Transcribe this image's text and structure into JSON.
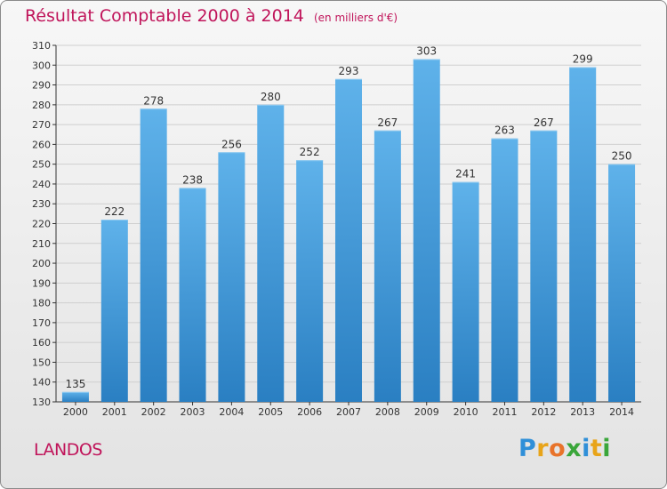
{
  "chart_data": {
    "type": "bar",
    "title": "Résultat Comptable 2000 à 2014",
    "subtitle": "(en milliers d'€)",
    "categories": [
      "2000",
      "2001",
      "2002",
      "2003",
      "2004",
      "2005",
      "2006",
      "2007",
      "2008",
      "2009",
      "2010",
      "2011",
      "2012",
      "2013",
      "2014"
    ],
    "values": [
      135,
      222,
      278,
      238,
      256,
      280,
      252,
      293,
      267,
      303,
      241,
      263,
      267,
      299,
      250
    ],
    "ylim": [
      130,
      310
    ],
    "ytick_step": 10,
    "xlabel": "",
    "ylabel": "",
    "grid": true,
    "bar_color": "#3a95d6",
    "label": "LANDOS"
  },
  "brand": {
    "letters": [
      "P",
      "r",
      "o",
      "x",
      "i",
      "t",
      "i"
    ],
    "colors": [
      "#2f8fd8",
      "#e8a419",
      "#e8732a",
      "#3aa63a",
      "#2f8fd8",
      "#e8a419",
      "#3aa63a"
    ]
  },
  "colors": {
    "title": "#c0145a",
    "grid": "#cfcfcf",
    "axis": "#333333"
  }
}
